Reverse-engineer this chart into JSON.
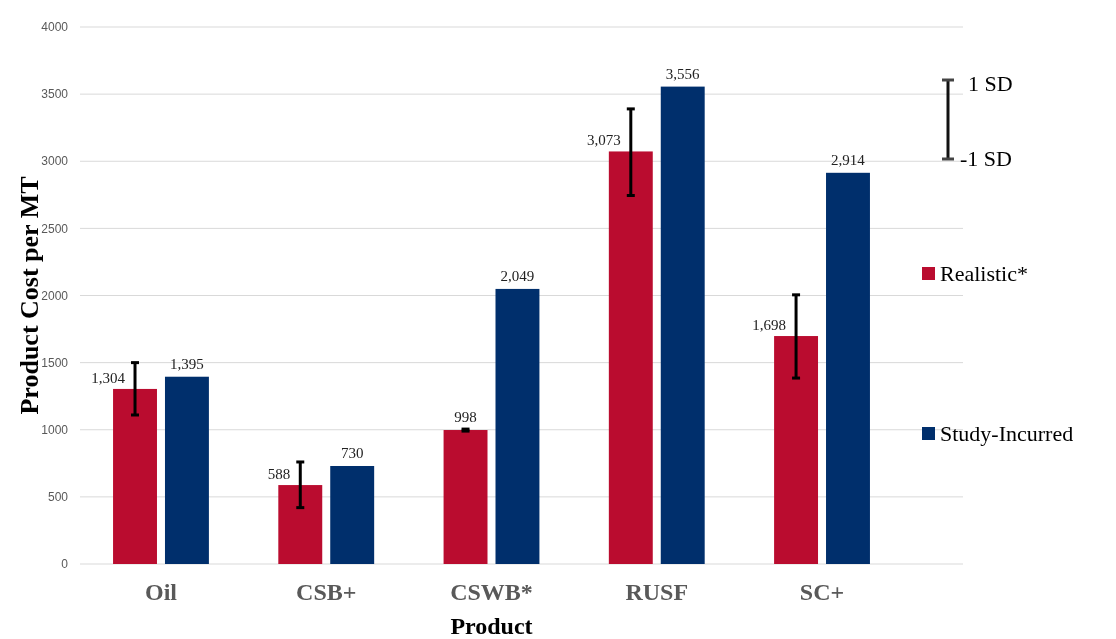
{
  "chart_data": {
    "type": "bar",
    "xlabel": "Product",
    "ylabel": "Product Cost per MT",
    "categories": [
      "Oil",
      "CSB+",
      "CSWB*",
      "RUSF",
      "SC+"
    ],
    "series": [
      {
        "name": "Realistic*",
        "color": "#ba0c2f",
        "values": [
          1304,
          588,
          998,
          3073,
          1698
        ],
        "value_labels": [
          "1,304",
          "588",
          "998",
          "3,073",
          "1,698"
        ],
        "errors": [
          [
            1110,
            1500
          ],
          [
            420,
            760
          ],
          [
            990,
            1005
          ],
          [
            2745,
            3390
          ],
          [
            1385,
            2005
          ]
        ]
      },
      {
        "name": "Study-Incurred",
        "color": "#002f6c",
        "values": [
          1395,
          730,
          2049,
          3556,
          2914
        ],
        "value_labels": [
          "1,395",
          "730",
          "2,049",
          "3,556",
          "2,914"
        ]
      }
    ],
    "ylim": [
      0,
      4000
    ],
    "yticks": [
      0,
      500,
      1000,
      1500,
      2000,
      2500,
      3000,
      3500,
      4000
    ],
    "grid": "y",
    "legend": "right",
    "annotations": [
      "1 SD",
      "-1 SD"
    ]
  }
}
